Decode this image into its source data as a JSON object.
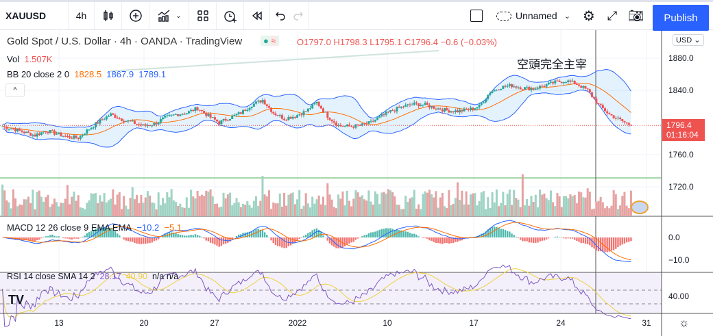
{
  "toolbar": {
    "symbol": "XAUUSD",
    "interval": "4h",
    "layout_name": "Unnamed",
    "publish": "Publish"
  },
  "legend": {
    "title": "Gold Spot / U.S. Dollar · 4h · OANDA · TradingView",
    "ohlc": "O1797.0 H1798.3 L1795.1 C1796.4 −0.6 (−0.03%)",
    "vol_label": "Vol",
    "vol_value": "1.507K",
    "bb_label": "BB 20 close 2 0",
    "bb_mid": "1828.5",
    "bb_upper": "1867.9",
    "bb_lower": "1789.1",
    "macd_label": "MACD 12 26 close 9 EMA EMA",
    "macd_value": "−10.2",
    "macd_signal": "−5.1",
    "rsi_label": "RSI 14 close SMA 14 2",
    "rsi_value": "28.17",
    "rsi_sma": "40.90",
    "rsi_extra": "n/a n/a"
  },
  "annotation": "空頭完全主宰",
  "price_axis": {
    "currency": "USD",
    "ticks": [
      "1880.0",
      "1840.0",
      "1760.0",
      "1720.0"
    ],
    "last_price": "1796.4",
    "countdown": "01:16:04"
  },
  "macd_axis": [
    "0.0",
    "−10.0"
  ],
  "rsi_axis": [
    "40.00"
  ],
  "time_axis": [
    "13",
    "20",
    "27",
    "2022",
    "10",
    "17",
    "24",
    "31"
  ],
  "colors": {
    "up": "#26a69a",
    "down": "#ef5350",
    "bb": "#2962ff",
    "basis": "#ff6d00",
    "accent": "#2962ff"
  },
  "chart_data": {
    "type": "candlestick",
    "price_range": [
      1700,
      1895
    ],
    "closes": [
      1795,
      1792,
      1788,
      1784,
      1790,
      1786,
      1782,
      1781,
      1792,
      1802,
      1810,
      1804,
      1800,
      1796,
      1798,
      1806,
      1810,
      1812,
      1818,
      1808,
      1800,
      1806,
      1812,
      1822,
      1828,
      1812,
      1805,
      1808,
      1814,
      1825,
      1808,
      1796,
      1795,
      1796,
      1800,
      1808,
      1815,
      1820,
      1823,
      1822,
      1818,
      1815,
      1814,
      1816,
      1820,
      1838,
      1844,
      1846,
      1843,
      1842,
      1846,
      1850,
      1852,
      1848,
      1840,
      1822,
      1810,
      1803,
      1796.4
    ]
  }
}
